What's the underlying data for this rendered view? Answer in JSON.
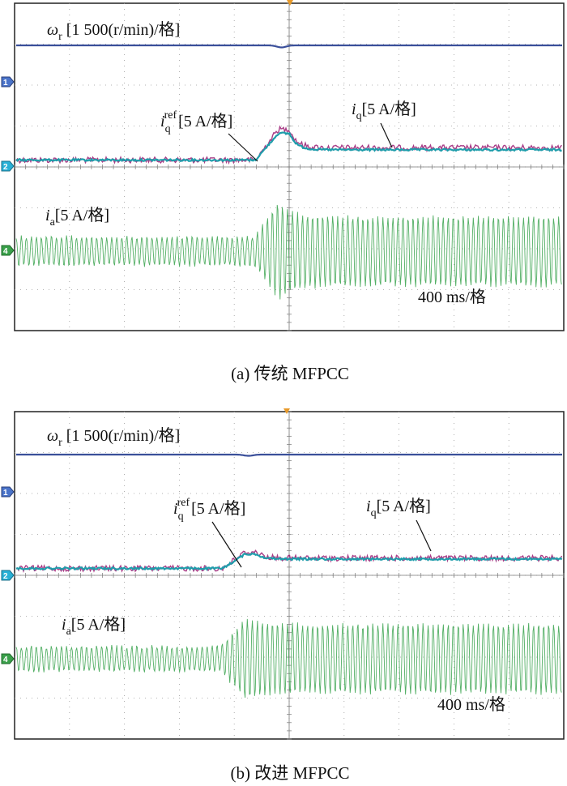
{
  "figure": {
    "captions": [
      "(a) 传统 MFPCC",
      "(b) 改进 MFPCC"
    ]
  },
  "colors": {
    "speed": "#3a4f9a",
    "iq": "#1f9dab",
    "iqref": "#a0287a",
    "ia": "#35a14a",
    "grid": "#9a9a9a",
    "trigger": "#e89a2a"
  },
  "panels": [
    {
      "caption": "(a) 传统 MFPCC",
      "labels": {
        "speed": {
          "sym": "ω",
          "sub": "r",
          "text": " [1 500(r/min)/格]"
        },
        "iqref": {
          "sym": "i",
          "sub": "q",
          "sup": "ref",
          "text": "[5 A/格]"
        },
        "iq": {
          "sym": "i",
          "sub": "q",
          "text": "[5 A/格]"
        },
        "ia": {
          "sym": "i",
          "sub": "a",
          "text": "[5 A/格]"
        },
        "timebase": "400 ms/格"
      },
      "channel_markers": [
        "1",
        "2",
        "4"
      ]
    },
    {
      "caption": "(b) 改进 MFPCC",
      "labels": {
        "speed": {
          "sym": "ω",
          "sub": "r",
          "text": " [1 500(r/min)/格]"
        },
        "iqref": {
          "sym": "i",
          "sub": "q",
          "sup": "ref",
          "text": "[5 A/格]"
        },
        "iq": {
          "sym": "i",
          "sub": "q",
          "text": "[5 A/格]"
        },
        "ia": {
          "sym": "i",
          "sub": "a",
          "text": "[5 A/格]"
        },
        "timebase": "400 ms/格"
      },
      "channel_markers": [
        "1",
        "2",
        "4"
      ]
    }
  ],
  "chart_data": [
    {
      "type": "line",
      "title": "(a) 传统 MFPCC",
      "x_unit": "ms",
      "x_div": 400,
      "x_divisions": 10,
      "series": [
        {
          "name": "ω_r",
          "scale": "1 500(r/min)/格",
          "shape": "constant with small dip at load step",
          "dip_div": 0.05
        },
        {
          "name": "i_q^ref",
          "scale": "5 A/格",
          "before_div": 0.05,
          "peak_div": 0.8,
          "after_div": 0.35
        },
        {
          "name": "i_q",
          "scale": "5 A/格",
          "before_div": 0.05,
          "peak_div": 0.7,
          "after_div": 0.3
        },
        {
          "name": "i_a",
          "scale": "5 A/格",
          "amp_before_div": 0.35,
          "amp_peak_div": 1.2,
          "amp_after_div": 0.85
        }
      ],
      "load_step_div": 4.8
    },
    {
      "type": "line",
      "title": "(b) 改进 MFPCC",
      "x_unit": "ms",
      "x_div": 400,
      "x_divisions": 10,
      "series": [
        {
          "name": "ω_r",
          "scale": "1 500(r/min)/格",
          "shape": "constant with small dip at load step",
          "dip_div": 0.03
        },
        {
          "name": "i_q^ref",
          "scale": "5 A/格",
          "before_div": 0.05,
          "peak_div": 0.45,
          "after_div": 0.3
        },
        {
          "name": "i_q",
          "scale": "5 A/格",
          "before_div": 0.05,
          "peak_div": 0.4,
          "after_div": 0.28
        },
        {
          "name": "i_a",
          "scale": "5 A/格",
          "amp_before_div": 0.3,
          "amp_peak_div": 1.0,
          "amp_after_div": 0.85
        }
      ],
      "load_step_div": 4.2
    }
  ]
}
